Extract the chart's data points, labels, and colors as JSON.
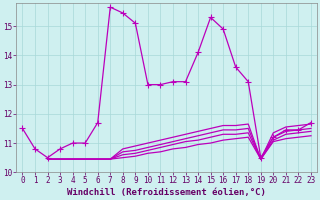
{
  "xlabel": "Windchill (Refroidissement éolien,°C)",
  "background_color": "#cff0f0",
  "line_color": "#bb00bb",
  "grid_color": "#a8d8d8",
  "ylim": [
    10.0,
    15.8
  ],
  "xlim": [
    -0.5,
    23.5
  ],
  "yticks": [
    10,
    11,
    12,
    13,
    14,
    15
  ],
  "xticks": [
    0,
    1,
    2,
    3,
    4,
    5,
    6,
    7,
    8,
    9,
    10,
    11,
    12,
    13,
    14,
    15,
    16,
    17,
    18,
    19,
    20,
    21,
    22,
    23
  ],
  "lines": [
    [
      11.5,
      10.8,
      10.5,
      10.8,
      11.0,
      11.0,
      11.7,
      15.65,
      15.45,
      15.1,
      13.0,
      13.0,
      13.1,
      13.1,
      14.1,
      15.3,
      14.9,
      13.6,
      13.1,
      10.5,
      11.2,
      11.45,
      11.45,
      11.7
    ],
    [
      null,
      null,
      10.45,
      10.45,
      10.45,
      10.45,
      10.45,
      10.45,
      10.5,
      10.55,
      10.65,
      10.7,
      10.8,
      10.85,
      10.95,
      11.0,
      11.1,
      11.15,
      11.2,
      10.45,
      11.05,
      11.15,
      11.2,
      11.25
    ],
    [
      null,
      null,
      10.45,
      10.45,
      10.45,
      10.45,
      10.45,
      10.45,
      10.6,
      10.65,
      10.75,
      10.85,
      10.95,
      11.05,
      11.1,
      11.2,
      11.3,
      11.3,
      11.35,
      10.45,
      11.1,
      11.3,
      11.35,
      11.4
    ],
    [
      null,
      null,
      10.45,
      10.45,
      10.45,
      10.45,
      10.45,
      10.45,
      10.7,
      10.75,
      10.85,
      10.95,
      11.05,
      11.15,
      11.25,
      11.35,
      11.45,
      11.45,
      11.5,
      10.45,
      11.2,
      11.4,
      11.45,
      11.5
    ],
    [
      null,
      null,
      10.45,
      10.45,
      10.45,
      10.45,
      10.45,
      10.45,
      10.8,
      10.9,
      11.0,
      11.1,
      11.2,
      11.3,
      11.4,
      11.5,
      11.6,
      11.6,
      11.65,
      10.45,
      11.35,
      11.55,
      11.6,
      11.65
    ]
  ],
  "has_markers": [
    true,
    false,
    false,
    false,
    false
  ],
  "marker_style": "+",
  "marker_size": 4,
  "line_width": 0.9,
  "tick_fontsize": 5.5,
  "xlabel_fontsize": 6.5
}
